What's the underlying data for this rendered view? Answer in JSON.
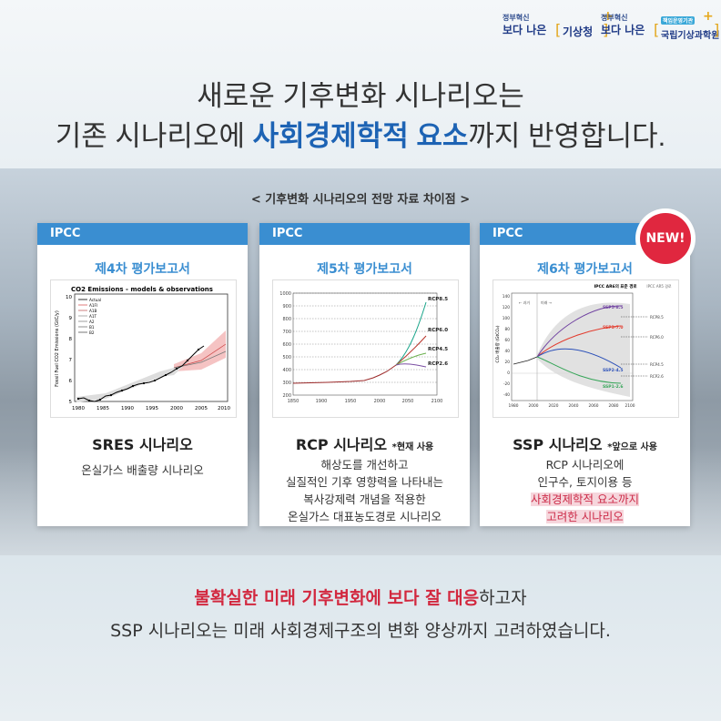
{
  "logos": {
    "kma": {
      "small": "정부혁신",
      "big": "보다 나은",
      "name": "기상청"
    },
    "nims": {
      "small": "정부혁신",
      "big": "보다 나은",
      "tiny": "책임운영기관",
      "name": "국립기상과학원"
    }
  },
  "headline": {
    "line1": "새로운 기후변화 시나리오는",
    "line2_pre": "기존 시나리오에 ",
    "line2_hl": "사회경제학적 요소",
    "line2_post": "까지 반영합니다."
  },
  "subtitle": "< 기후변화 시나리오의 전망 자료 차이점 >",
  "cards": [
    {
      "tab": "IPCC",
      "report": "제4차 평가보고서",
      "name": "SRES 시나리오",
      "note": "",
      "desc": [
        "온실가스 배출량 시나리오"
      ],
      "chart": {
        "title": "CO2 Emissions - models & observations",
        "ylabel": "Fossil Fuel CO2 Emissions (GtC/y)",
        "legend": [
          "Actual",
          "A1FI",
          "A1B",
          "A1T",
          "A2",
          "B1",
          "B2"
        ],
        "xticks": [
          "1980",
          "1985",
          "1990",
          "1995",
          "2000",
          "2005",
          "2010"
        ],
        "yticks": [
          "10",
          "9",
          "8",
          "7",
          "6",
          "5"
        ]
      }
    },
    {
      "tab": "IPCC",
      "report": "제5차 평가보고서",
      "name": "RCP 시나리오",
      "note": "*현재 사용",
      "desc": [
        "해상도를 개선하고",
        "실질적인 기후 영향력을 나타내는",
        "복사강제력 개념을 적용한",
        "온실가스 대표농도경로 시나리오"
      ],
      "chart": {
        "labels": [
          "RCP8.5",
          "RCP6.0",
          "RCP4.5",
          "RCP2.6"
        ],
        "xticks": [
          "1850",
          "1900",
          "1950",
          "2000",
          "2050",
          "2100"
        ],
        "yticks": [
          "1000",
          "900",
          "800",
          "700",
          "600",
          "500",
          "400",
          "300",
          "200"
        ]
      }
    },
    {
      "tab": "IPCC",
      "report": "제6차 평가보고서",
      "name": "SSP 시나리오",
      "note": "*앞으로 사용",
      "desc": [
        "RCP 시나리오에",
        "인구수, 토지이용 등"
      ],
      "desc_hl": [
        "사회경제학적 요소까지",
        "고려한 시나리오"
      ],
      "chart": {
        "hdr1": "IPCC AR6의 표준 경로",
        "hdr2": "IPCC AR5 경로",
        "labels": [
          "SSP5-8.5",
          "SSP3-7.0",
          "SSP2-4.5",
          "SSP1-2.6"
        ],
        "rcp": [
          "RCP8.5",
          "RCP6.0",
          "RCP4.5",
          "RCP2.6"
        ],
        "past": "← 과거",
        "future": "미래 →",
        "ylabel": "CO₂ 배출량 (GtCO₂)",
        "xticks": [
          "1980",
          "2000",
          "2020",
          "2040",
          "2060",
          "2080",
          "2100"
        ],
        "yticks": [
          "140",
          "120",
          "100",
          "80",
          "60",
          "40",
          "20",
          "0",
          "-20",
          "-40"
        ]
      }
    }
  ],
  "new_badge": "NEW!",
  "bottom": {
    "line1_red": "불확실한 미래 기후변화에 보다 잘 대응",
    "line1_post": "하고자",
    "line2": "SSP 시나리오는 미래 사회경제구조의 변화 양상까지 고려하였습니다."
  },
  "colors": {
    "accent_blue": "#1d63b4",
    "tab_blue": "#3a8ed1",
    "red": "#d2283f"
  }
}
